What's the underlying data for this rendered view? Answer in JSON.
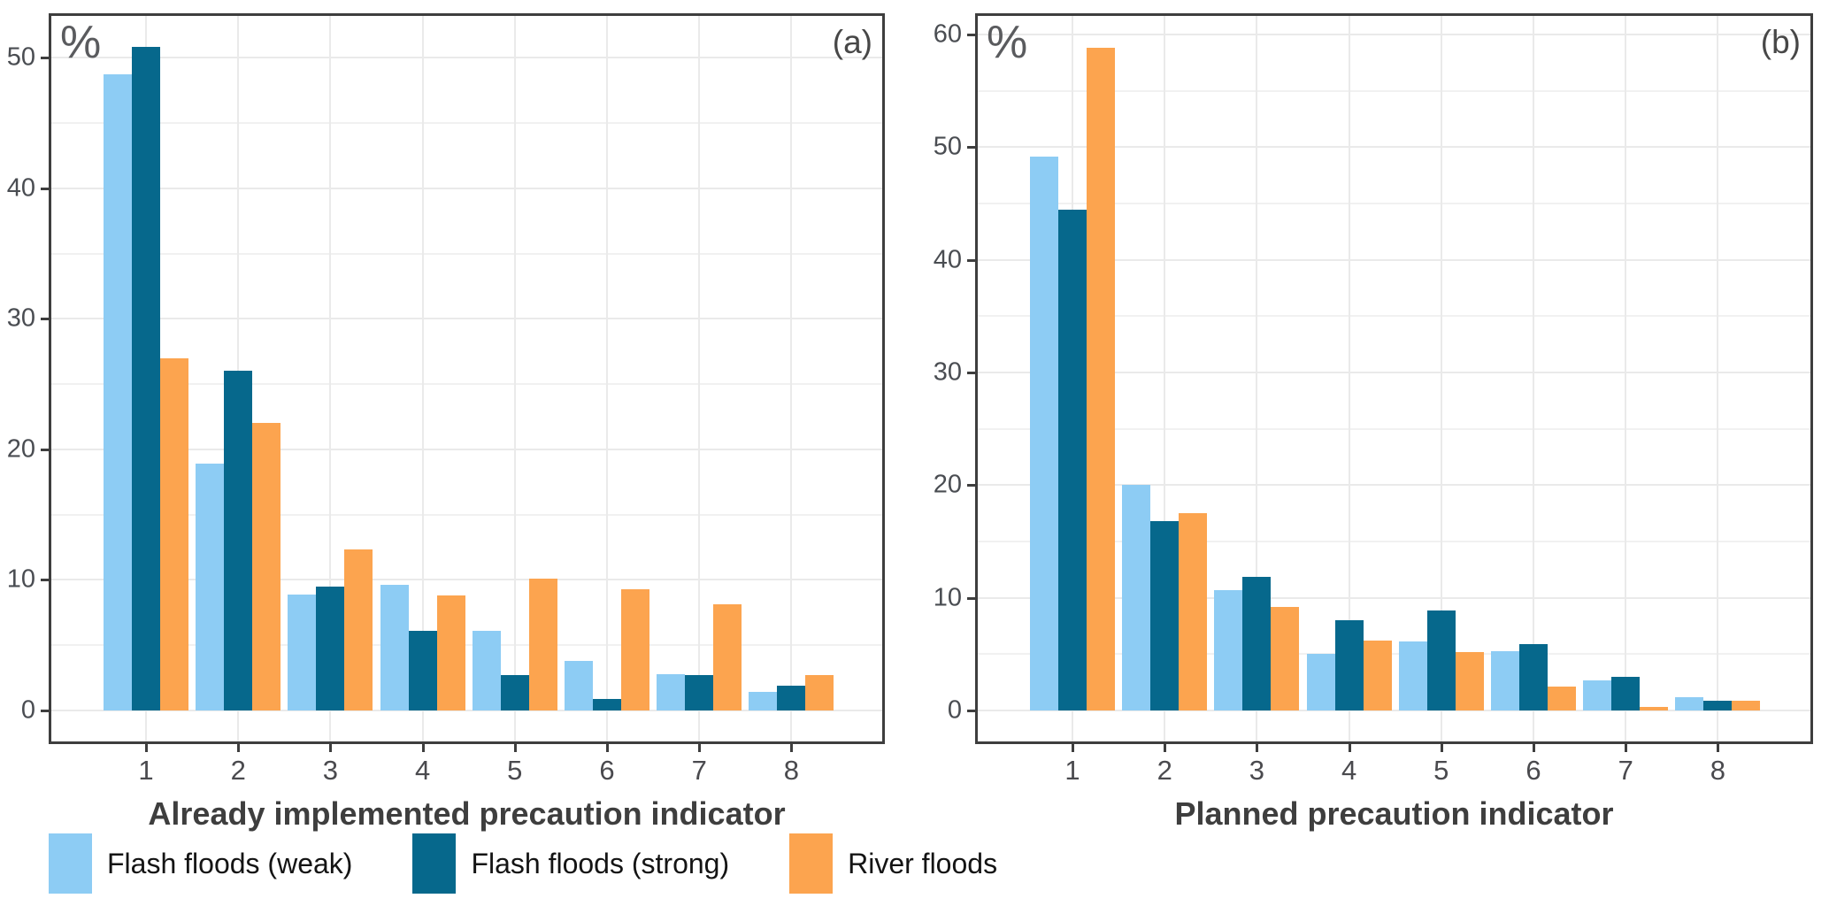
{
  "legend": {
    "items": [
      {
        "label": "Flash floods (weak)",
        "color": "#8DCCF4"
      },
      {
        "label": "Flash floods (strong)",
        "color": "#06688C"
      },
      {
        "label": "River floods",
        "color": "#FCA44F"
      }
    ]
  },
  "style_colors": {
    "axis_line": "#3E3E3E",
    "major_grid": "#EAEAEA",
    "minor_grid": "#F1F1F1",
    "tick_text": "#4A4D52",
    "title_text": "#3E3E3E"
  },
  "chart_data": [
    {
      "type": "bar",
      "title": "(a)",
      "ylabel": "%",
      "xlabel": "Already implemented precaution indicator",
      "categories": [
        "1",
        "2",
        "3",
        "4",
        "5",
        "6",
        "7",
        "8"
      ],
      "yticks": [
        0,
        10,
        20,
        30,
        40,
        50
      ],
      "ylim": [
        0,
        53.4
      ],
      "grid": true,
      "legend_position": "bottom-left",
      "series": [
        {
          "name": "Flash floods (weak)",
          "color": "#8DCCF4",
          "values": [
            48.7,
            18.9,
            8.9,
            9.6,
            6.1,
            3.8,
            2.8,
            1.4
          ]
        },
        {
          "name": "Flash floods (strong)",
          "color": "#06688C",
          "values": [
            50.8,
            26.0,
            9.5,
            6.1,
            2.7,
            0.9,
            2.7,
            1.9
          ]
        },
        {
          "name": "River floods",
          "color": "#FCA44F",
          "values": [
            27.0,
            22.0,
            12.3,
            8.8,
            10.1,
            9.3,
            8.1,
            2.7
          ]
        }
      ]
    },
    {
      "type": "bar",
      "title": "(b)",
      "ylabel": "%",
      "xlabel": "Planned precaution indicator",
      "categories": [
        "1",
        "2",
        "3",
        "4",
        "5",
        "6",
        "7",
        "8"
      ],
      "yticks": [
        0,
        10,
        20,
        30,
        40,
        50,
        60
      ],
      "ylim": [
        0,
        61.9
      ],
      "grid": true,
      "legend_position": "bottom-left",
      "series": [
        {
          "name": "Flash floods (weak)",
          "color": "#8DCCF4",
          "values": [
            49.2,
            20.0,
            10.7,
            5.0,
            6.1,
            5.3,
            2.7,
            1.2
          ]
        },
        {
          "name": "Flash floods (strong)",
          "color": "#06688C",
          "values": [
            44.5,
            16.8,
            11.9,
            8.0,
            8.9,
            5.9,
            3.0,
            0.9
          ]
        },
        {
          "name": "River floods",
          "color": "#FCA44F",
          "values": [
            58.8,
            17.5,
            9.2,
            6.2,
            5.2,
            2.1,
            0.3,
            0.9
          ]
        }
      ]
    }
  ]
}
